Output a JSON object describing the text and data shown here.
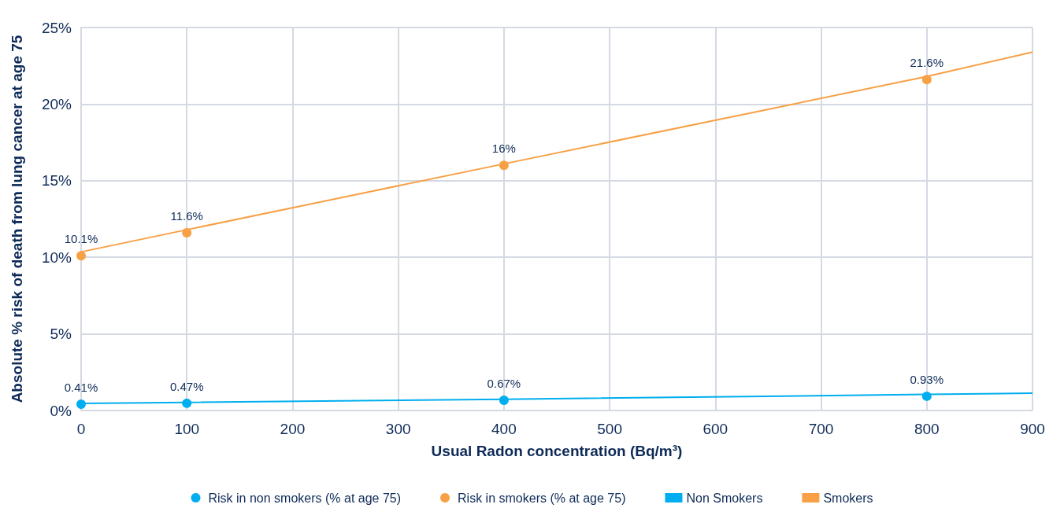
{
  "chart_data": {
    "type": "scatter",
    "xlabel": "Usual Radon concentration (Bq/m³)",
    "ylabel": "Absolute % risk of death from lung cancer at age 75",
    "x": [
      0,
      100,
      400,
      800,
      900
    ],
    "series": [
      {
        "name": "Risk in non smokers (% at age 75)",
        "color": "#00aeef",
        "type": "scatter",
        "marker": "circle",
        "values": [
          0.41,
          0.47,
          0.67,
          0.93,
          null
        ],
        "value_labels": [
          "0.41%",
          "0.47%",
          "0.67%",
          "0.93%",
          null
        ]
      },
      {
        "name": "Risk in smokers (% at age 75)",
        "color": "#f7a045",
        "type": "scatter",
        "marker": "circle",
        "values": [
          10.1,
          11.6,
          16,
          21.6,
          null
        ],
        "value_labels": [
          "10.1%",
          "11.6%",
          "16%",
          "21.6%",
          null
        ]
      },
      {
        "name": "Non Smokers",
        "color": "#00aeef",
        "type": "line",
        "marker": "none",
        "values": [
          0.46,
          0.53,
          0.73,
          1.05,
          1.13
        ]
      },
      {
        "name": "Smokers",
        "color": "#f7a045",
        "type": "line",
        "marker": "none",
        "values": [
          10.35,
          11.8,
          16.1,
          21.8,
          23.4
        ]
      }
    ],
    "xlim": [
      0,
      900
    ],
    "xticks": [
      0,
      100,
      200,
      300,
      400,
      500,
      600,
      700,
      800,
      900
    ],
    "ylim": [
      0,
      25
    ],
    "yticks": [
      {
        "value": 0,
        "label": "0%"
      },
      {
        "value": 5,
        "label": "5%"
      },
      {
        "value": 10,
        "label": "10%"
      },
      {
        "value": 15,
        "label": "15%"
      },
      {
        "value": 20,
        "label": "20%"
      },
      {
        "value": 25,
        "label": "25%"
      }
    ],
    "grid": true,
    "legend": "bottom"
  }
}
